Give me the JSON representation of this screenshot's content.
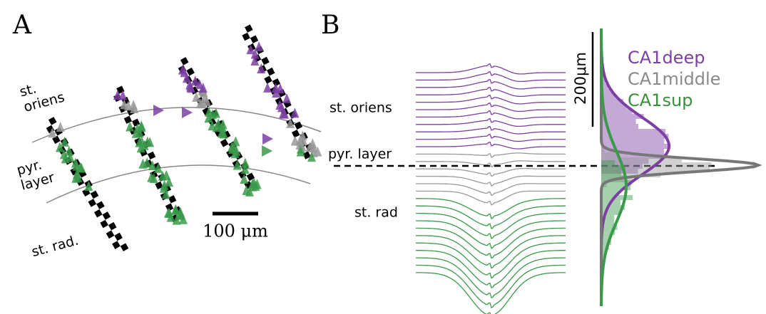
{
  "panel_a": {
    "label": "A",
    "layers": [
      "st. oriens",
      "pyr. layer",
      "st. rad."
    ],
    "scale_bar": "100 μm"
  },
  "panel_b": {
    "label": "B",
    "layers": [
      "st. oriens",
      "pyr. layer",
      "st. rad"
    ],
    "scale_bar": "200μm",
    "legend": [
      "CA1deep",
      "CA1middle",
      "CA1sup"
    ]
  }
}
